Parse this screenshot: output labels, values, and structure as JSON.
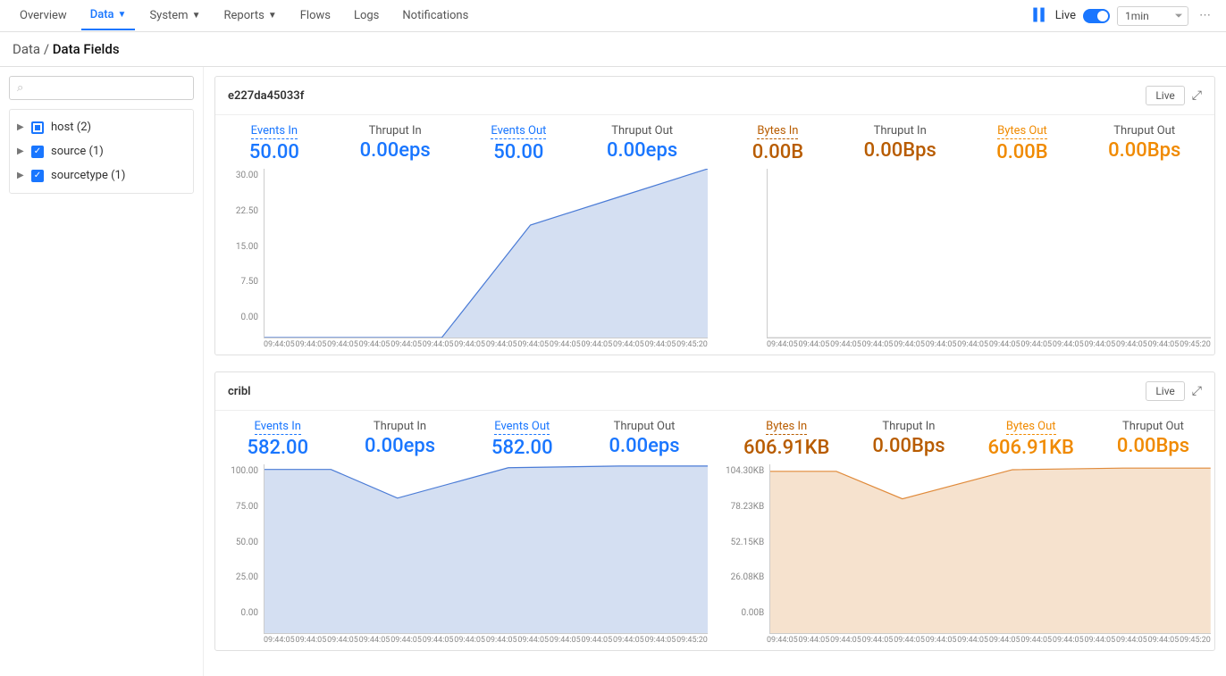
{
  "nav": {
    "tabs": [
      "Overview",
      "Data",
      "System",
      "Reports",
      "Flows",
      "Logs",
      "Notifications"
    ],
    "active_index": 1,
    "dropdown_flags": [
      false,
      true,
      true,
      true,
      false,
      false,
      false
    ],
    "live_label": "Live",
    "live_on": true,
    "interval_value": "1min"
  },
  "breadcrumb": {
    "root": "Data",
    "current": "Data Fields"
  },
  "sidebar": {
    "search_placeholder": "",
    "items": [
      {
        "label": "host (2)",
        "state": "partial"
      },
      {
        "label": "source (1)",
        "state": "checked"
      },
      {
        "label": "sourcetype (1)",
        "state": "checked"
      }
    ]
  },
  "panels": [
    {
      "id": "p0",
      "title": "e227da45033f",
      "live_button": "Live",
      "left": {
        "metrics": [
          {
            "label": "Events In",
            "value": "50.00",
            "cls": "blue",
            "underlined": true
          },
          {
            "label": "Thruput In",
            "value": "0.00eps",
            "cls": "blue2",
            "underlined": false
          },
          {
            "label": "Events Out",
            "value": "50.00",
            "cls": "blue",
            "underlined": true
          },
          {
            "label": "Thruput Out",
            "value": "0.00eps",
            "cls": "blue2",
            "underlined": false
          }
        ],
        "chart": {
          "type": "area",
          "stroke": "#4a7bd6",
          "fill": "#cdd9f0",
          "fill_opacity": 0.85,
          "stroke_width": 1.2,
          "ylim": [
            0,
            30
          ],
          "y_ticks": [
            "30.00",
            "22.50",
            "15.00",
            "7.50",
            "0.00"
          ],
          "x_labels": [
            "09:44:05",
            "09:44:05",
            "09:44:05",
            "09:44:05",
            "09:44:05",
            "09:44:05",
            "09:44:05",
            "09:44:05",
            "09:44:05",
            "09:44:05",
            "09:44:05",
            "09:44:05",
            "09:44:05",
            "09:45:20"
          ],
          "points": [
            {
              "x": 0,
              "y": 0
            },
            {
              "x": 10,
              "y": 0
            },
            {
              "x": 20,
              "y": 0
            },
            {
              "x": 30,
              "y": 0
            },
            {
              "x": 40,
              "y": 0
            },
            {
              "x": 60,
              "y": 20
            },
            {
              "x": 80,
              "y": 25
            },
            {
              "x": 100,
              "y": 30
            }
          ]
        }
      },
      "right": {
        "metrics": [
          {
            "label": "Bytes In",
            "value": "0.00B",
            "cls": "brown",
            "underlined": true
          },
          {
            "label": "Thruput In",
            "value": "0.00Bps",
            "cls": "brown2",
            "underlined": false
          },
          {
            "label": "Bytes Out",
            "value": "0.00B",
            "cls": "orange",
            "underlined": true
          },
          {
            "label": "Thruput Out",
            "value": "0.00Bps",
            "cls": "orange2",
            "underlined": false
          }
        ],
        "chart": {
          "type": "area",
          "stroke": "#d0d0d0",
          "fill": "none",
          "fill_opacity": 0,
          "stroke_width": 1,
          "ylim": [
            0,
            30
          ],
          "y_ticks": [
            "",
            "",
            "",
            "",
            ""
          ],
          "x_labels": [
            "09:44:05",
            "09:44:05",
            "09:44:05",
            "09:44:05",
            "09:44:05",
            "09:44:05",
            "09:44:05",
            "09:44:05",
            "09:44:05",
            "09:44:05",
            "09:44:05",
            "09:44:05",
            "09:44:05",
            "09:45:20"
          ],
          "points": [
            {
              "x": 0,
              "y": 0
            },
            {
              "x": 100,
              "y": 0
            }
          ]
        }
      }
    },
    {
      "id": "p1",
      "title": "cribl",
      "live_button": "Live",
      "left": {
        "metrics": [
          {
            "label": "Events In",
            "value": "582.00",
            "cls": "blue",
            "underlined": true
          },
          {
            "label": "Thruput In",
            "value": "0.00eps",
            "cls": "blue2",
            "underlined": false
          },
          {
            "label": "Events Out",
            "value": "582.00",
            "cls": "blue",
            "underlined": true
          },
          {
            "label": "Thruput Out",
            "value": "0.00eps",
            "cls": "blue2",
            "underlined": false
          }
        ],
        "chart": {
          "type": "area",
          "stroke": "#4a7bd6",
          "fill": "#cdd9f0",
          "fill_opacity": 0.85,
          "stroke_width": 1.2,
          "ylim": [
            0,
            100
          ],
          "y_ticks": [
            "100.00",
            "75.00",
            "50.00",
            "25.00",
            "0.00"
          ],
          "x_labels": [
            "09:44:05",
            "09:44:05",
            "09:44:05",
            "09:44:05",
            "09:44:05",
            "09:44:05",
            "09:44:05",
            "09:44:05",
            "09:44:05",
            "09:44:05",
            "09:44:05",
            "09:44:05",
            "09:44:05",
            "09:45:20"
          ],
          "points": [
            {
              "x": 0,
              "y": 97
            },
            {
              "x": 15,
              "y": 97
            },
            {
              "x": 30,
              "y": 80
            },
            {
              "x": 55,
              "y": 98
            },
            {
              "x": 80,
              "y": 99
            },
            {
              "x": 100,
              "y": 99
            }
          ]
        }
      },
      "right": {
        "metrics": [
          {
            "label": "Bytes In",
            "value": "606.91KB",
            "cls": "brown",
            "underlined": true
          },
          {
            "label": "Thruput In",
            "value": "0.00Bps",
            "cls": "brown2",
            "underlined": false
          },
          {
            "label": "Bytes Out",
            "value": "606.91KB",
            "cls": "orange",
            "underlined": true
          },
          {
            "label": "Thruput Out",
            "value": "0.00Bps",
            "cls": "orange2",
            "underlined": false
          }
        ],
        "chart": {
          "type": "area",
          "stroke": "#e08a3a",
          "fill": "#f5ddc5",
          "fill_opacity": 0.85,
          "stroke_width": 1.2,
          "ylim": [
            0,
            104.3
          ],
          "y_ticks": [
            "104.30KB",
            "78.23KB",
            "52.15KB",
            "26.08KB",
            "0.00B"
          ],
          "x_labels": [
            "09:44:05",
            "09:44:05",
            "09:44:05",
            "09:44:05",
            "09:44:05",
            "09:44:05",
            "09:44:05",
            "09:44:05",
            "09:44:05",
            "09:44:05",
            "09:44:05",
            "09:44:05",
            "09:44:05",
            "09:45:20"
          ],
          "points": [
            {
              "x": 0,
              "y": 100
            },
            {
              "x": 15,
              "y": 100
            },
            {
              "x": 30,
              "y": 83
            },
            {
              "x": 55,
              "y": 101
            },
            {
              "x": 80,
              "y": 102
            },
            {
              "x": 100,
              "y": 102
            }
          ]
        }
      }
    }
  ],
  "colors": {
    "primary_blue": "#1976ff",
    "area_blue_stroke": "#4a7bd6",
    "area_blue_fill": "#cdd9f0",
    "area_orange_stroke": "#e08a3a",
    "area_orange_fill": "#f5ddc5",
    "brown": "#b85c00",
    "orange": "#f08a00",
    "grid": "#eeeeee"
  }
}
